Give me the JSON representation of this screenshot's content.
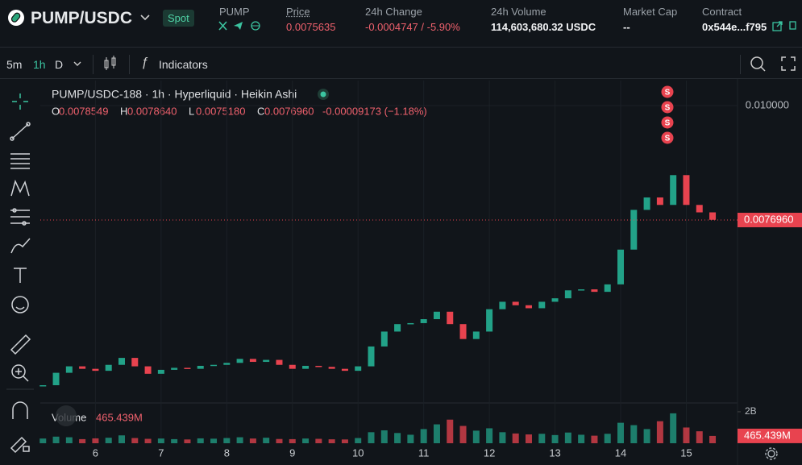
{
  "header": {
    "pair": "PUMP/USDC",
    "badge": "Spot",
    "stats": [
      {
        "label": "PUMP",
        "value": null
      },
      {
        "label": "Price",
        "value": "0.0075635"
      },
      {
        "label": "24h Change",
        "value": "-0.0004747 / -5.90%"
      },
      {
        "label": "24h Volume",
        "value": "114,603,680.32 USDC"
      },
      {
        "label": "Market Cap",
        "value": "--"
      },
      {
        "label": "Contract",
        "value": "0x544e...f795"
      }
    ]
  },
  "toolbar": {
    "intervals": [
      "5m",
      "1h",
      "D"
    ],
    "indicators": "Indicators"
  },
  "legend": {
    "title": "PUMP/USDC-188 · 1h · Hyperliquid · Heikin Ashi",
    "ohlc": [
      {
        "key": "O",
        "value": "0.0078549"
      },
      {
        "key": "H",
        "value": "0.0078640"
      },
      {
        "key": "L",
        "value": "0.0075180"
      },
      {
        "key": "C",
        "value": "0.0076960"
      }
    ],
    "change": "-0.00009173 (−1.18%)"
  },
  "markers": [
    "S",
    "S",
    "S",
    "S"
  ],
  "chart_data": {
    "type": "candlestick",
    "x": [
      5.2,
      5.4,
      5.6,
      5.8,
      6.0,
      6.2,
      6.4,
      6.6,
      6.8,
      7.0,
      7.2,
      7.4,
      7.6,
      7.8,
      8.0,
      8.2,
      8.4,
      8.6,
      8.8,
      9.0,
      9.2,
      9.4,
      9.6,
      9.8,
      10.0,
      10.2,
      10.4,
      10.6,
      10.8,
      11.0,
      11.2,
      11.4,
      11.6,
      11.8,
      12.0,
      12.2,
      12.4,
      12.6,
      12.8,
      13.0,
      13.2,
      13.4,
      13.6,
      13.8,
      14.0,
      14.2,
      14.4,
      14.6,
      14.8,
      15.0,
      15.2,
      15.4
    ],
    "close": [
      0.00437,
      0.00462,
      0.00475,
      0.0047,
      0.00466,
      0.00478,
      0.00492,
      0.00475,
      0.0046,
      0.00468,
      0.00472,
      0.0047,
      0.00476,
      0.00478,
      0.00482,
      0.0049,
      0.00484,
      0.00488,
      0.00478,
      0.0047,
      0.00476,
      0.00474,
      0.0047,
      0.00466,
      0.00475,
      0.00515,
      0.00545,
      0.0056,
      0.00562,
      0.0057,
      0.00585,
      0.0056,
      0.0053,
      0.00545,
      0.0059,
      0.00605,
      0.00598,
      0.00592,
      0.00605,
      0.00612,
      0.00628,
      0.0063,
      0.00625,
      0.0064,
      0.0071,
      0.0079,
      0.00815,
      0.008,
      0.0086,
      0.008,
      0.00785,
      0.0077
    ],
    "volume": [
      300000000,
      420000000,
      380000000,
      260000000,
      310000000,
      350000000,
      500000000,
      330000000,
      280000000,
      300000000,
      260000000,
      240000000,
      310000000,
      290000000,
      330000000,
      380000000,
      300000000,
      350000000,
      270000000,
      260000000,
      300000000,
      280000000,
      250000000,
      240000000,
      330000000,
      700000000,
      820000000,
      650000000,
      540000000,
      900000000,
      1200000000,
      1500000000,
      1100000000,
      800000000,
      950000000,
      700000000,
      620000000,
      560000000,
      600000000,
      520000000,
      680000000,
      540000000,
      480000000,
      600000000,
      1300000000,
      1150000000,
      900000000,
      1400000000,
      1900000000,
      1000000000,
      760000000,
      465439000
    ],
    "up_color": "#22a288",
    "down_color": "#e8434f",
    "xlim": [
      5.16,
      15.78
    ],
    "xticks": [
      6,
      7,
      8,
      9,
      10,
      11,
      12,
      13,
      14,
      15
    ],
    "ylim": [
      0.004013,
      0.010503
    ],
    "yticks": [
      {
        "value": 0.01,
        "label": "0.010000"
      }
    ],
    "last_price": {
      "value": 0.007696,
      "label": "0.0076960"
    },
    "volume_label": "Volume",
    "volume_ylim": [
      0,
      2560000000
    ],
    "volume_yticks": [
      {
        "value": 2000000000,
        "label": "2B"
      }
    ],
    "last_volume": {
      "value": 465439000,
      "label": "465.439M"
    },
    "grid": true
  }
}
